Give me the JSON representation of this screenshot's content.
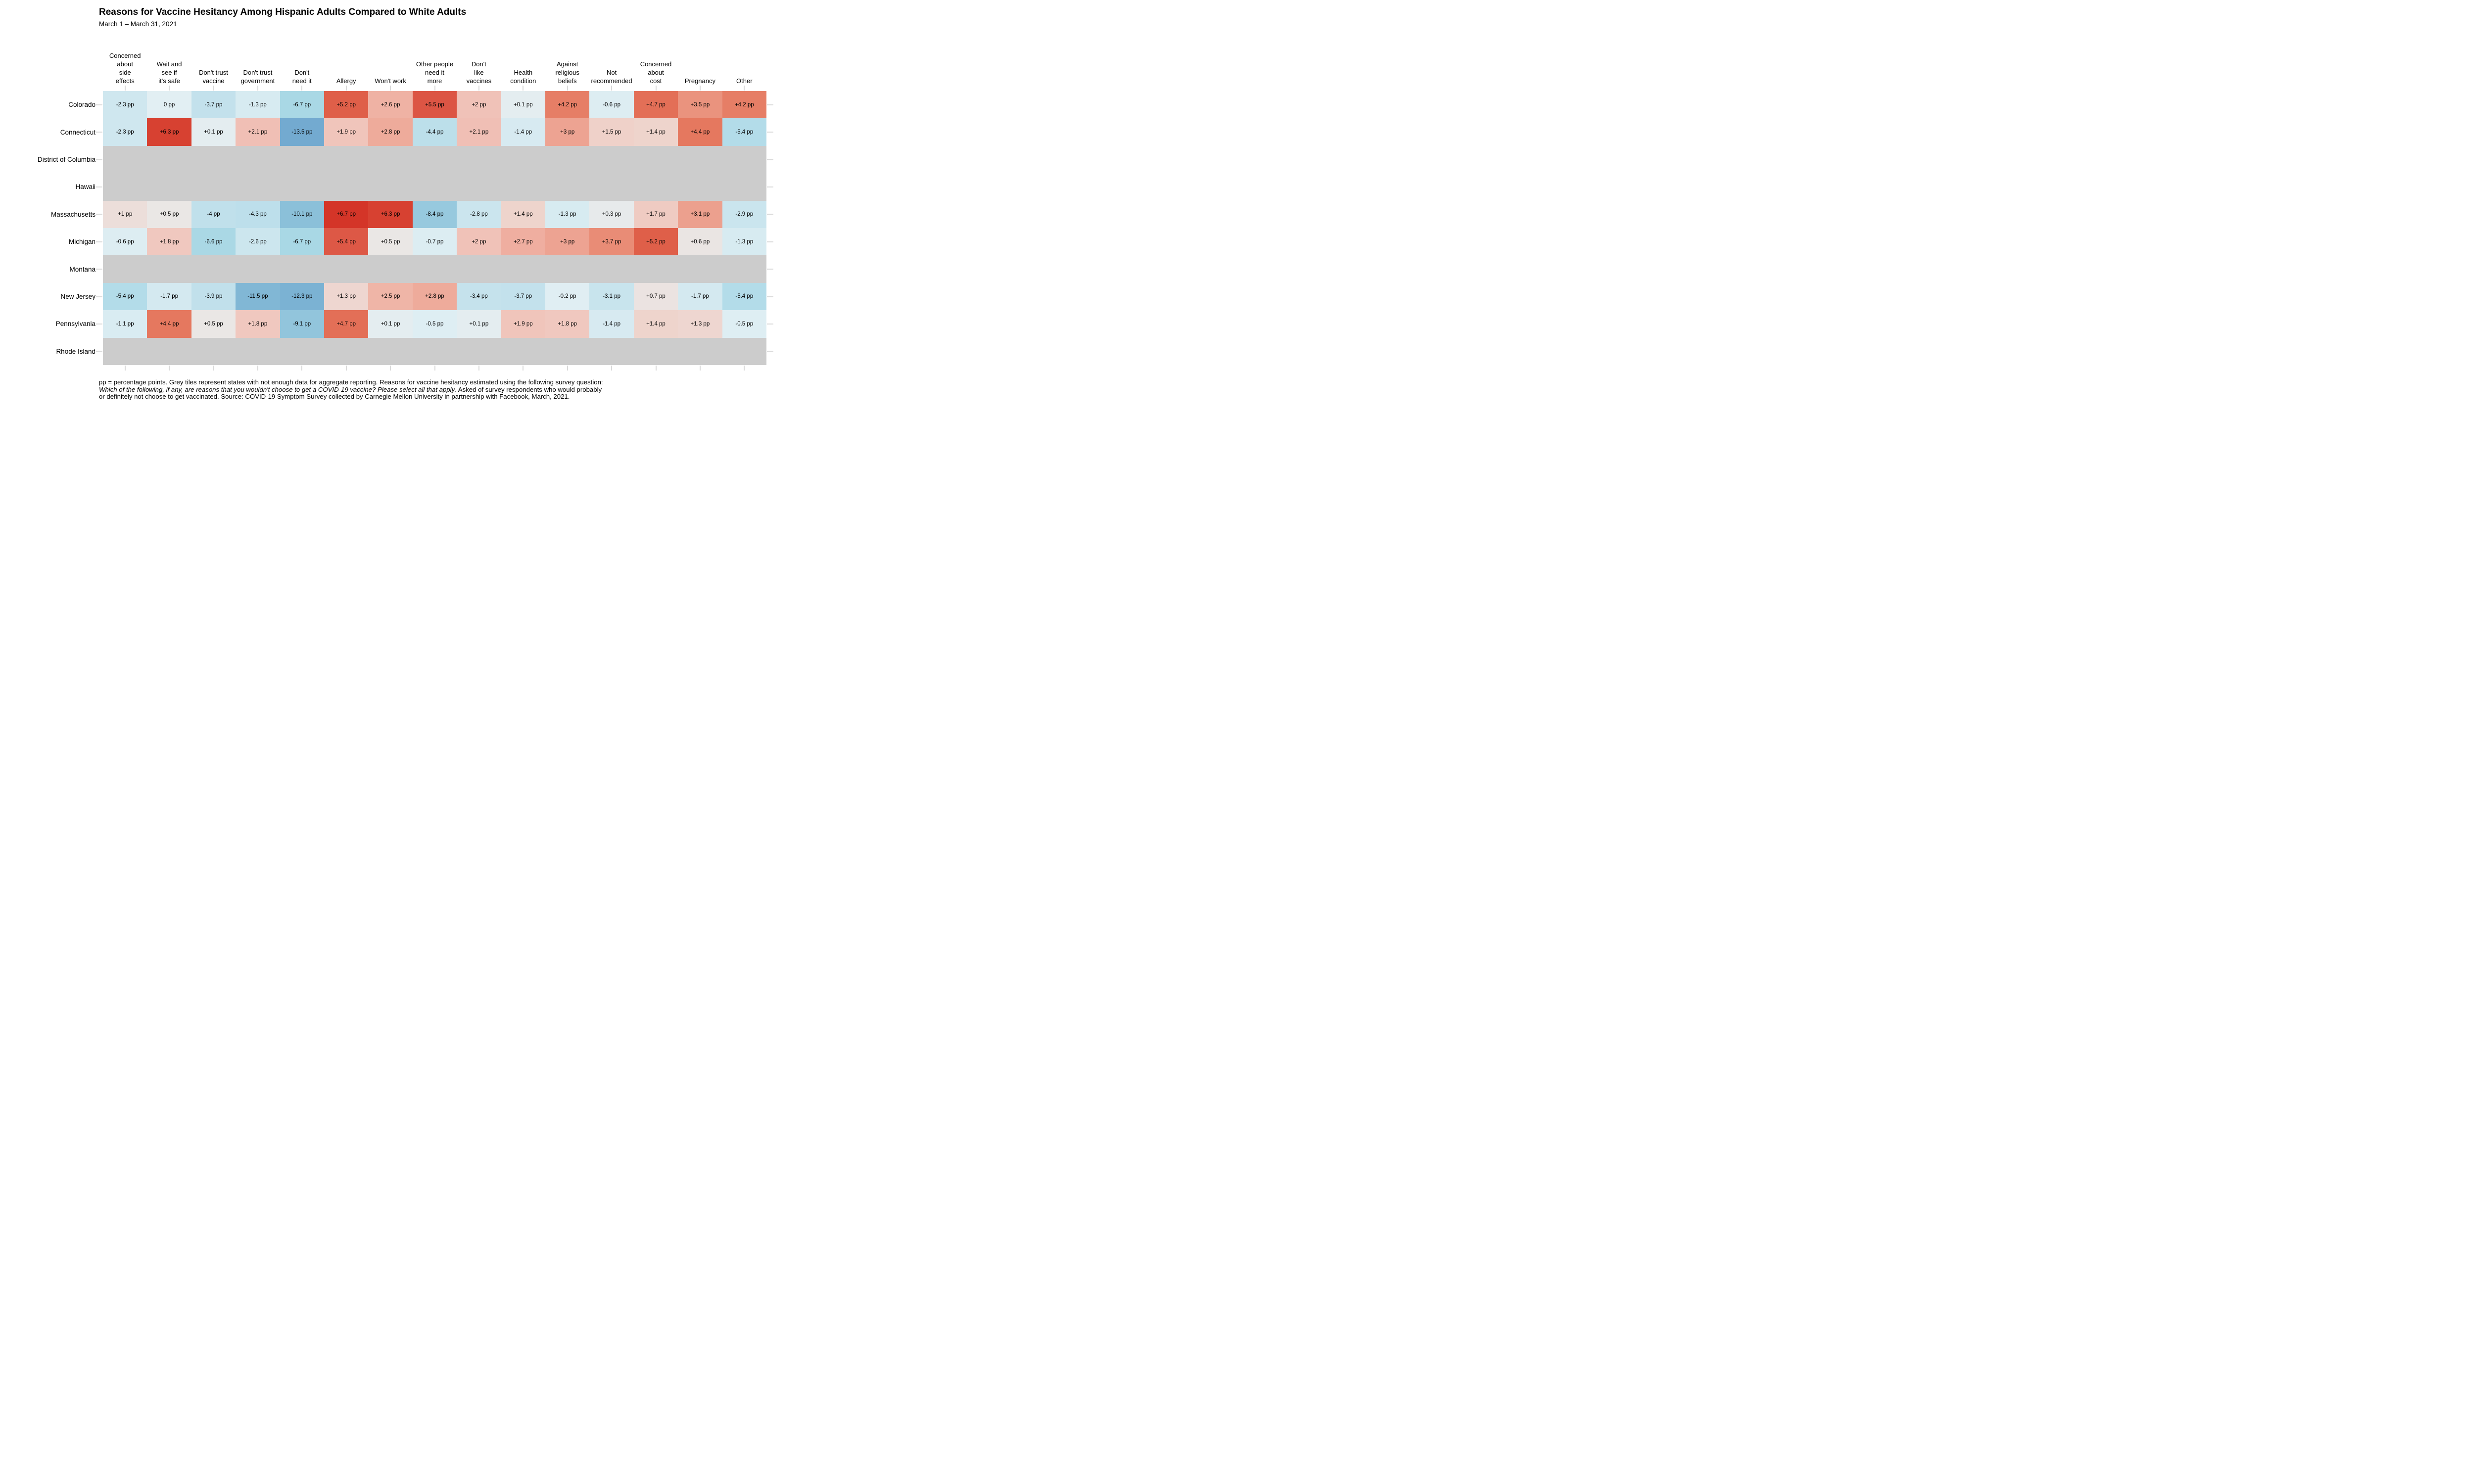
{
  "chart_data": {
    "type": "heatmap",
    "title": "Reasons for Vaccine Hesitancy Among Hispanic Adults Compared to White Adults",
    "subtitle": "March 1 – March 31, 2021",
    "unit_suffix": " pp",
    "columns": [
      "Concerned\nabout\nside\neffects",
      "Wait and\nsee if\nit's safe",
      "Don't trust\nvaccine",
      "Don't trust\ngovernment",
      "Don't\nneed it",
      "Allergy",
      "Won't work",
      "Other people\nneed it\nmore",
      "Don't\nlike\nvaccines",
      "Health\ncondition",
      "Against\nreligious\nbeliefs",
      "Not\nrecommended",
      "Concerned\nabout\ncost",
      "Pregnancy",
      "Other"
    ],
    "rows": [
      {
        "state": "Colorado",
        "values": [
          -2.3,
          0,
          -3.7,
          -1.3,
          -6.7,
          5.2,
          2.6,
          5.5,
          2,
          0.1,
          4.2,
          -0.6,
          4.7,
          3.5,
          4.2
        ]
      },
      {
        "state": "Connecticut",
        "values": [
          -2.3,
          6.3,
          0.1,
          2.1,
          -13.5,
          1.9,
          2.8,
          -4.4,
          2.1,
          -1.4,
          3,
          1.5,
          1.4,
          4.4,
          -5.4
        ]
      },
      {
        "state": "District of Columbia",
        "values": null
      },
      {
        "state": "Hawaii",
        "values": null
      },
      {
        "state": "Massachusetts",
        "values": [
          1,
          0.5,
          -4,
          -4.3,
          -10.1,
          6.7,
          6.3,
          -8.4,
          -2.8,
          1.4,
          -1.3,
          0.3,
          1.7,
          3.1,
          -2.9
        ]
      },
      {
        "state": "Michigan",
        "values": [
          -0.6,
          1.8,
          -6.6,
          -2.6,
          -6.7,
          5.4,
          0.5,
          -0.7,
          2,
          2.7,
          3,
          3.7,
          5.2,
          0.6,
          -1.3
        ]
      },
      {
        "state": "Montana",
        "values": null
      },
      {
        "state": "New Jersey",
        "values": [
          -5.4,
          -1.7,
          -3.9,
          -11.5,
          -12.3,
          1.3,
          2.5,
          2.8,
          -3.4,
          -3.7,
          -0.2,
          -3.1,
          0.7,
          -1.7,
          -5.4
        ]
      },
      {
        "state": "Pennsylvania",
        "values": [
          -1.1,
          4.4,
          0.5,
          1.8,
          -9.1,
          4.7,
          0.1,
          -0.5,
          0.1,
          1.9,
          1.8,
          -1.4,
          1.4,
          1.3,
          -0.5
        ]
      },
      {
        "state": "Rhode Island",
        "values": null
      }
    ],
    "colors": {
      "missing_tile": "#cccccc",
      "tick": "#d9d9d9",
      "text": "#000000",
      "scale_anchors": [
        [
          -13.5,
          "#73aad0"
        ],
        [
          -10.1,
          "#8bc0d9"
        ],
        [
          -8.4,
          "#97c9de"
        ],
        [
          -6.7,
          "#a9d8e5"
        ],
        [
          -5.4,
          "#b3dce9"
        ],
        [
          -4.0,
          "#c0e0eb"
        ],
        [
          -2.3,
          "#cfe7ef"
        ],
        [
          -1.0,
          "#daecf2"
        ],
        [
          0.0,
          "#e2eff3"
        ],
        [
          0.5,
          "#eae7e5"
        ],
        [
          1.0,
          "#ecdeda"
        ],
        [
          1.5,
          "#efd1c9"
        ],
        [
          2.0,
          "#f0c2b8"
        ],
        [
          2.6,
          "#efb2a4"
        ],
        [
          3.0,
          "#eda392"
        ],
        [
          3.7,
          "#e98c76"
        ],
        [
          4.4,
          "#e5785f"
        ],
        [
          5.2,
          "#df5f49"
        ],
        [
          5.5,
          "#dc5544"
        ],
        [
          6.3,
          "#d74131"
        ],
        [
          6.7,
          "#d43528"
        ]
      ]
    },
    "footnote": {
      "line1": "pp = percentage points. Grey tiles represent states with not enough data for aggregate reporting. Reasons for vaccine hesitancy estimated using the following survey question:",
      "line2_italic": "Which of the following, if any, are reasons that you wouldn't choose to get a COVID-19 vaccine? Please select all that apply",
      "line2_regular": ". Asked of survey respondents who would probably",
      "line3": "or definitely not choose to get vaccinated. Source: COVID-19 Symptom Survey collected by Carnegie Mellon University in partnership with Facebook, March, 2021."
    }
  }
}
